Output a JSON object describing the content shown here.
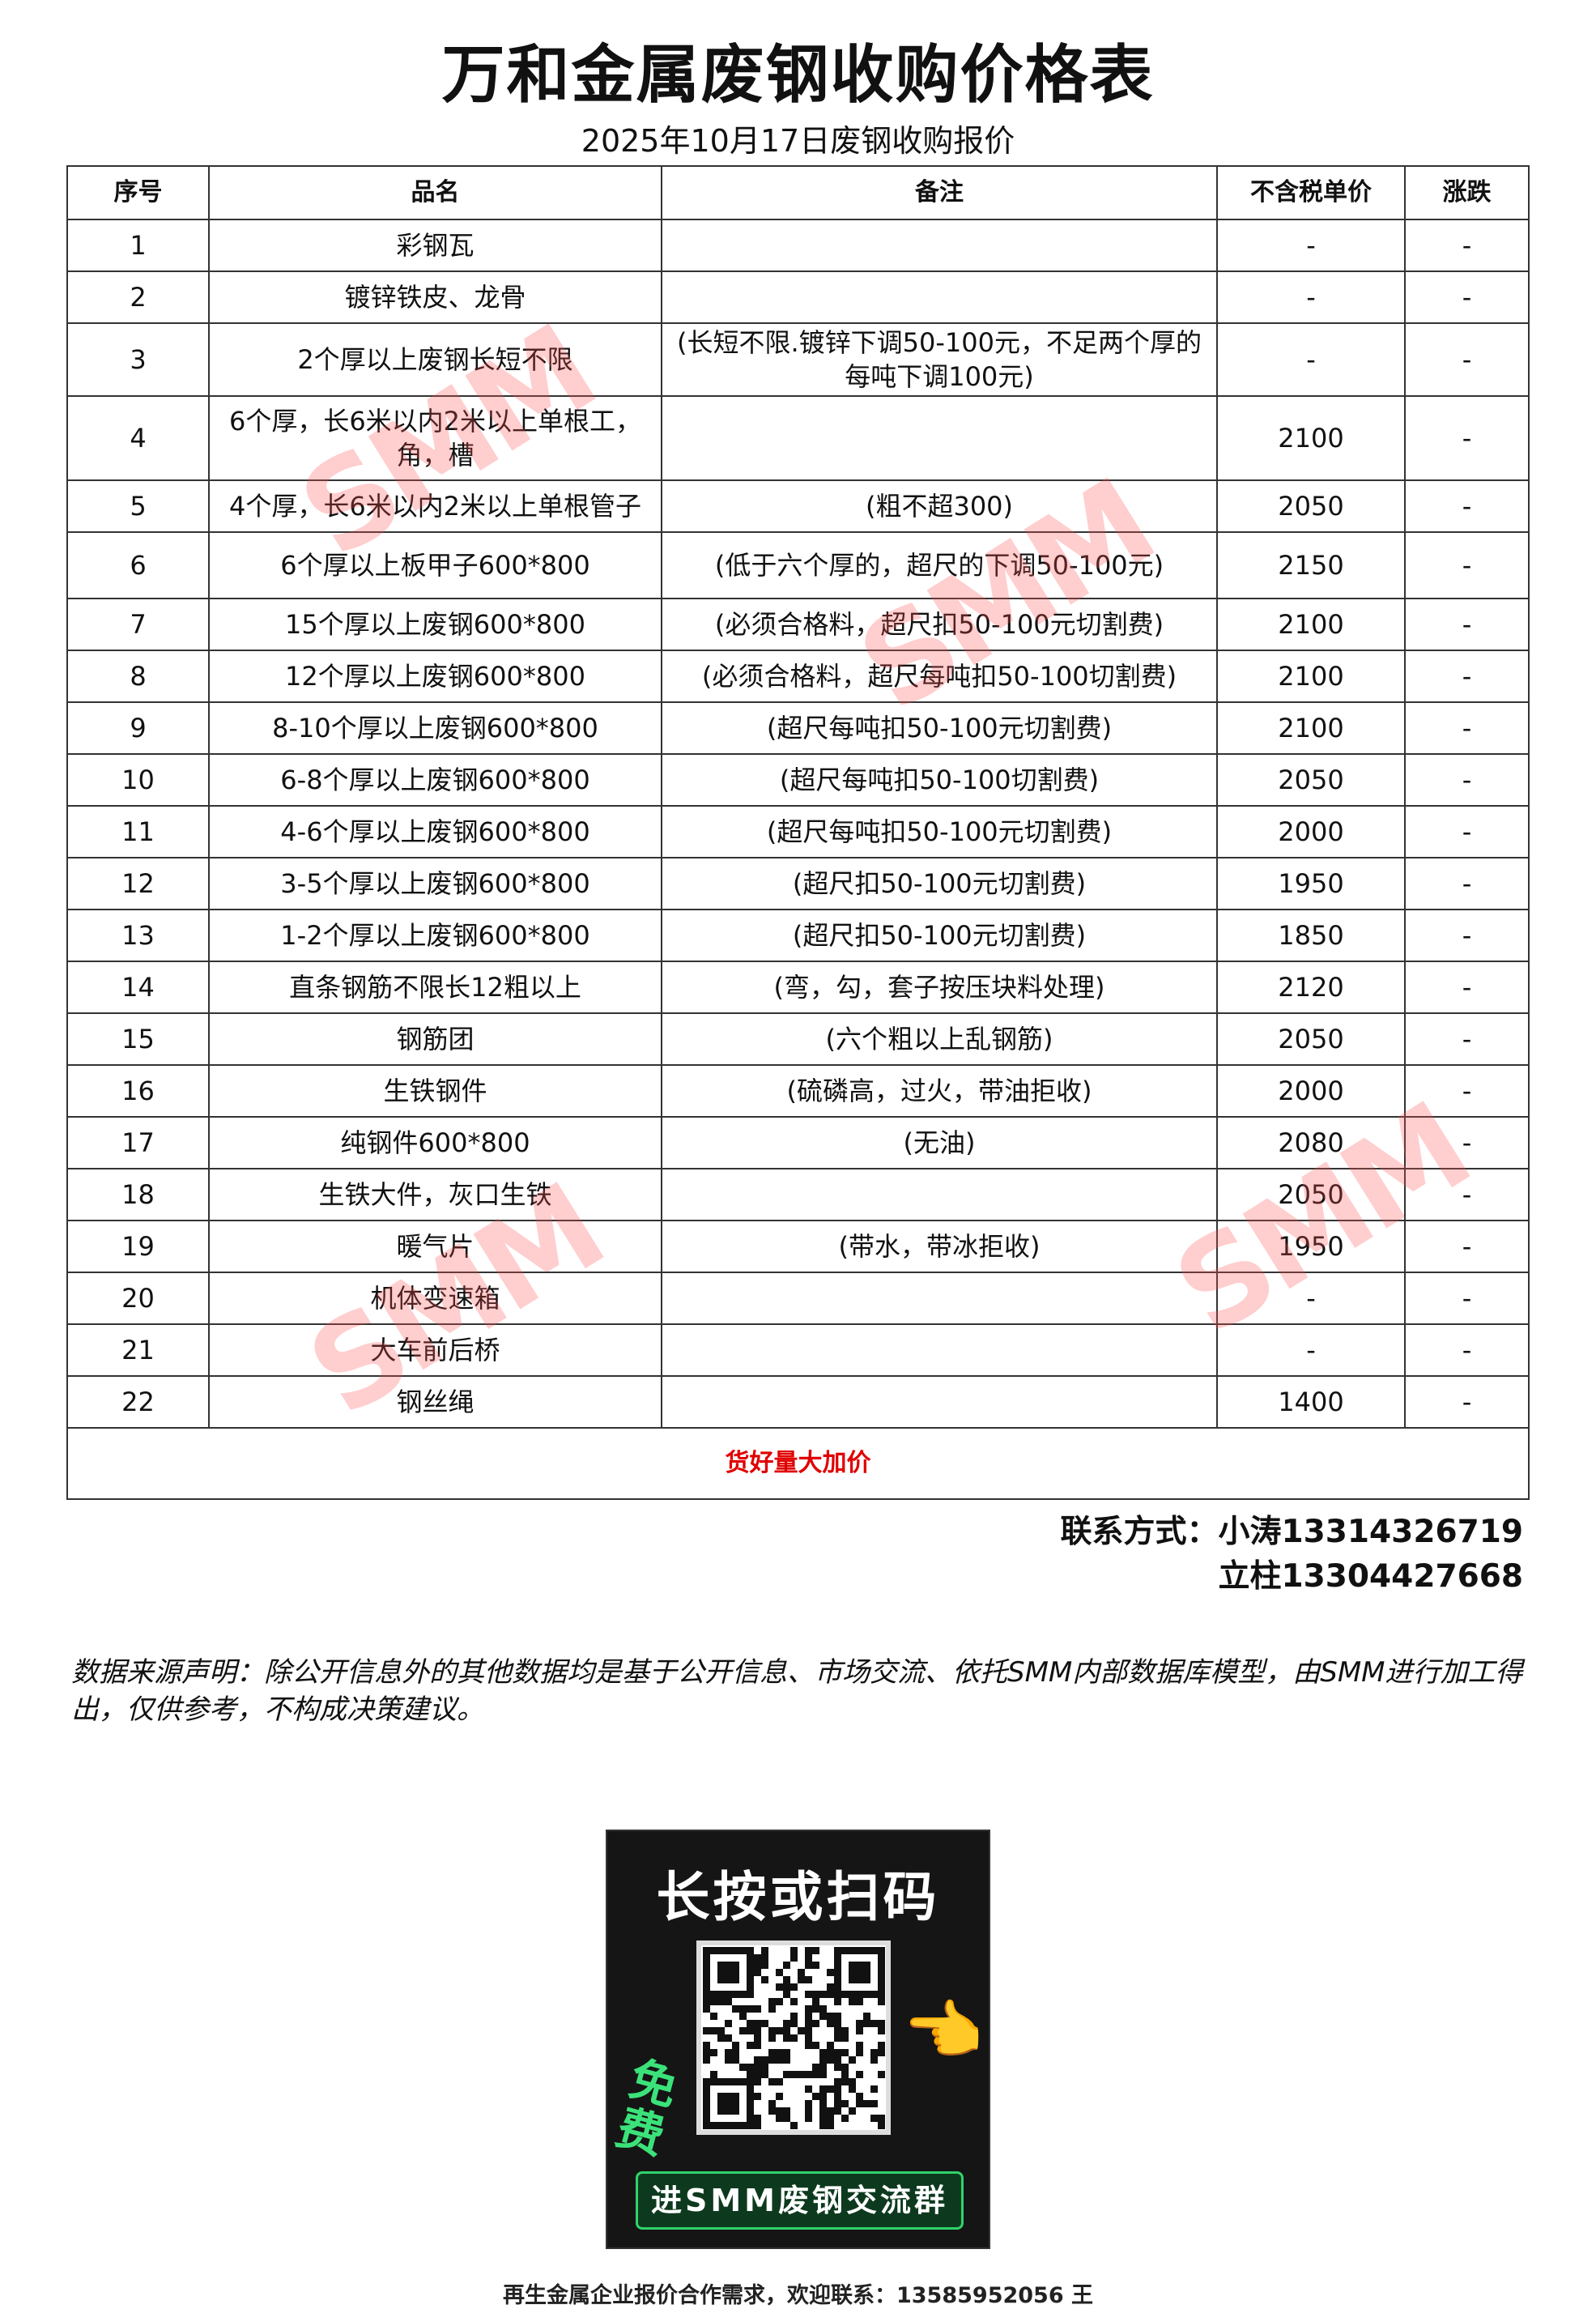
{
  "title": "万和金属废钢收购价格表",
  "subtitle": "2025年10月17日废钢收购报价",
  "table": {
    "headers": [
      "序号",
      "品名",
      "备注",
      "不含税单价",
      "涨跌"
    ],
    "rows": [
      [
        "1",
        "彩钢瓦",
        "",
        "-",
        "-"
      ],
      [
        "2",
        "镀锌铁皮、龙骨",
        "",
        "-",
        "-"
      ],
      [
        "3",
        "2个厚以上废钢长短不限",
        "(长短不限.镀锌下调50-100元，不足两个厚的每吨下调100元)",
        "-",
        "-"
      ],
      [
        "4",
        "6个厚，长6米以内2米以上单根工，角，槽",
        "",
        "2100",
        "-"
      ],
      [
        "5",
        "4个厚，长6米以内2米以上单根管子",
        "(粗不超300)",
        "2050",
        "-"
      ],
      [
        "6",
        "6个厚以上板甲子600*800",
        "(低于六个厚的，超尺的下调50-100元)",
        "2150",
        "-"
      ],
      [
        "7",
        "15个厚以上废钢600*800",
        "(必须合格料，超尺扣50-100元切割费)",
        "2100",
        "-"
      ],
      [
        "8",
        "12个厚以上废钢600*800",
        "(必须合格料，超尺每吨扣50-100切割费)",
        "2100",
        "-"
      ],
      [
        "9",
        "8-10个厚以上废钢600*800",
        "(超尺每吨扣50-100元切割费)",
        "2100",
        "-"
      ],
      [
        "10",
        "6-8个厚以上废钢600*800",
        "(超尺每吨扣50-100切割费)",
        "2050",
        "-"
      ],
      [
        "11",
        "4-6个厚以上废钢600*800",
        "(超尺每吨扣50-100元切割费)",
        "2000",
        "-"
      ],
      [
        "12",
        "3-5个厚以上废钢600*800",
        "(超尺扣50-100元切割费)",
        "1950",
        "-"
      ],
      [
        "13",
        "1-2个厚以上废钢600*800",
        "(超尺扣50-100元切割费)",
        "1850",
        "-"
      ],
      [
        "14",
        "直条钢筋不限长12粗以上",
        "(弯，勾，套子按压块料处理)",
        "2120",
        "-"
      ],
      [
        "15",
        "钢筋团",
        "(六个粗以上乱钢筋)",
        "2050",
        "-"
      ],
      [
        "16",
        "生铁钢件",
        "(硫磷高，过火，带油拒收)",
        "2000",
        "-"
      ],
      [
        "17",
        "纯钢件600*800",
        "(无油)",
        "2080",
        "-"
      ],
      [
        "18",
        "生铁大件，灰口生铁",
        "",
        "2050",
        "-"
      ],
      [
        "19",
        "暖气片",
        "(带水，带冰拒收)",
        "1950",
        "-"
      ],
      [
        "20",
        "机体变速箱",
        "",
        "-",
        "-"
      ],
      [
        "21",
        "大车前后桥",
        "",
        "-",
        "-"
      ],
      [
        "22",
        "钢丝绳",
        "",
        "1400",
        "-"
      ]
    ],
    "promo": "货好量大加价"
  },
  "contact": {
    "line1": "联系方式：小涛13314326719",
    "line2": "立柱13304427668"
  },
  "disclaimer": "数据来源声明：除公开信息外的其他数据均是基于公开信息、市场交流、依托SMM内部数据库模型，由SMM进行加工得出，仅供参考，不构成决策建议。",
  "watermark": "SMM",
  "qr": {
    "title": "长按或扫码",
    "free": "免费",
    "bar": "进SMM废钢交流群"
  },
  "footer": "再生金属企业报价合作需求，欢迎联系：13585952056 王",
  "colors": {
    "promo": "#e00000",
    "watermark": "#ff5050",
    "qr_accent": "#2fd36a"
  }
}
